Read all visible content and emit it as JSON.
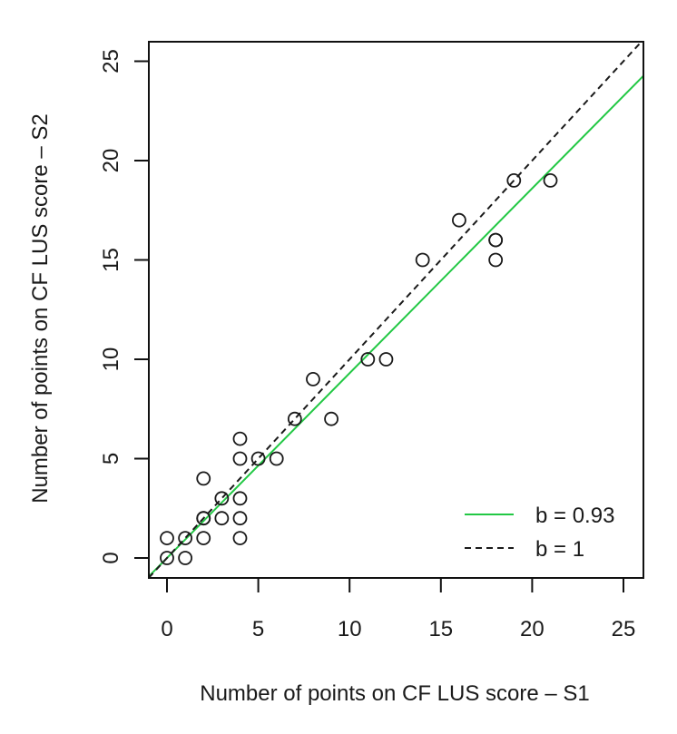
{
  "chart_data": {
    "type": "scatter",
    "title": "",
    "xlabel": "Number of points on CF LUS score – S1",
    "ylabel": "Number of points on CF LUS score – S2",
    "xlim": [
      -1,
      26.1
    ],
    "ylim": [
      -1,
      26
    ],
    "xticks": [
      0,
      5,
      10,
      15,
      20,
      25
    ],
    "yticks": [
      0,
      5,
      10,
      15,
      20,
      25
    ],
    "grid": false,
    "legend_position": "bottom-right",
    "points": [
      {
        "x": 0,
        "y": 0
      },
      {
        "x": 1,
        "y": 0
      },
      {
        "x": 0,
        "y": 1
      },
      {
        "x": 1,
        "y": 1
      },
      {
        "x": 2,
        "y": 1
      },
      {
        "x": 4,
        "y": 1
      },
      {
        "x": 2,
        "y": 2
      },
      {
        "x": 2,
        "y": 2
      },
      {
        "x": 3,
        "y": 2
      },
      {
        "x": 4,
        "y": 2
      },
      {
        "x": 3,
        "y": 3
      },
      {
        "x": 4,
        "y": 3
      },
      {
        "x": 2,
        "y": 4
      },
      {
        "x": 4,
        "y": 5
      },
      {
        "x": 5,
        "y": 5
      },
      {
        "x": 6,
        "y": 5
      },
      {
        "x": 4,
        "y": 6
      },
      {
        "x": 7,
        "y": 7
      },
      {
        "x": 9,
        "y": 7
      },
      {
        "x": 8,
        "y": 9
      },
      {
        "x": 11,
        "y": 10
      },
      {
        "x": 12,
        "y": 10
      },
      {
        "x": 14,
        "y": 15
      },
      {
        "x": 18,
        "y": 15
      },
      {
        "x": 18,
        "y": 16
      },
      {
        "x": 18,
        "y": 16
      },
      {
        "x": 16,
        "y": 17
      },
      {
        "x": 19,
        "y": 19
      },
      {
        "x": 21,
        "y": 19
      }
    ],
    "lines": [
      {
        "name": "b = 0.93",
        "slope": 0.93,
        "intercept": 0,
        "color": "#22c844",
        "style": "solid"
      },
      {
        "name": "b = 1",
        "slope": 1,
        "intercept": 0,
        "color": "#1a1a1a",
        "style": "dashed"
      }
    ],
    "legend": [
      {
        "label": "b = 0.93",
        "color": "#22c844",
        "style": "solid"
      },
      {
        "label": "b = 1",
        "color": "#1a1a1a",
        "style": "dashed"
      }
    ]
  }
}
